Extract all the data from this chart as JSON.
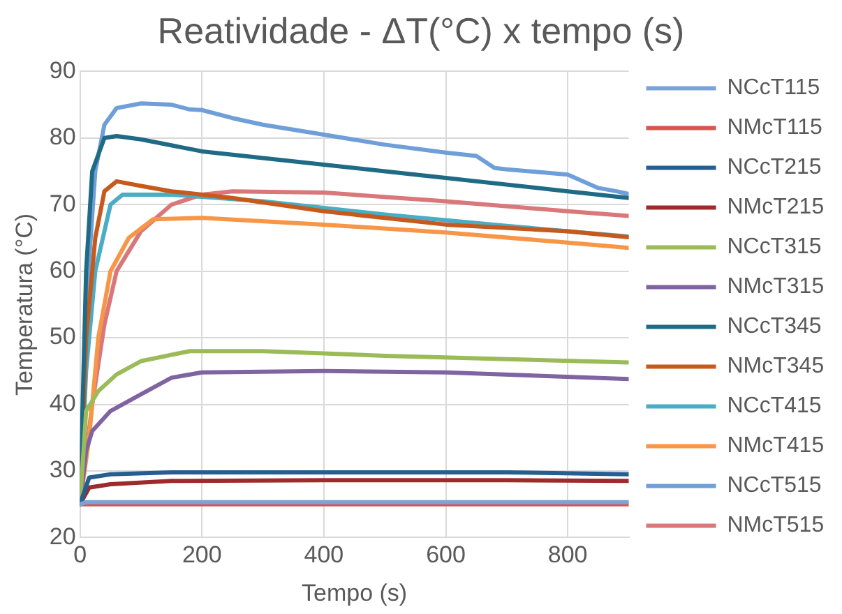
{
  "chart_data": {
    "type": "line",
    "title": "Reatividade - ΔT(°C) x tempo (s)",
    "xlabel": "Tempo (s)",
    "ylabel": "Temperatura (°C)",
    "xlim": [
      0,
      900
    ],
    "xticks": [
      0,
      200,
      400,
      600,
      800
    ],
    "ylim": [
      20,
      90
    ],
    "yticks": [
      20,
      30,
      40,
      50,
      60,
      70,
      80,
      90
    ],
    "grid": true,
    "legend": "right",
    "marker": "none",
    "series": [
      {
        "name": "NCcT115",
        "color": "#7ba3d9",
        "x": [
          0,
          10,
          100,
          900
        ],
        "values": [
          25,
          25.3,
          25.3,
          25.3
        ]
      },
      {
        "name": "NMcT115",
        "color": "#d9534f",
        "x": [
          0,
          100,
          900
        ],
        "values": [
          25,
          25,
          25
        ]
      },
      {
        "name": "NCcT215",
        "color": "#255e91",
        "x": [
          0,
          15,
          50,
          150,
          400,
          700,
          900
        ],
        "values": [
          25,
          29,
          29.5,
          29.8,
          29.8,
          29.8,
          29.5
        ]
      },
      {
        "name": "NMcT215",
        "color": "#9e2a2b",
        "x": [
          0,
          15,
          50,
          150,
          400,
          700,
          900
        ],
        "values": [
          25,
          27.5,
          28,
          28.5,
          28.6,
          28.6,
          28.5
        ]
      },
      {
        "name": "NCcT315",
        "color": "#9bbb59",
        "x": [
          0,
          10,
          30,
          60,
          100,
          180,
          300,
          500,
          700,
          900
        ],
        "values": [
          25,
          39,
          42,
          44.5,
          46.5,
          48,
          48,
          47.3,
          46.8,
          46.3
        ]
      },
      {
        "name": "NMcT315",
        "color": "#8064a2",
        "x": [
          0,
          10,
          20,
          50,
          100,
          150,
          200,
          400,
          600,
          900
        ],
        "values": [
          25,
          33,
          36,
          39,
          41.5,
          44,
          44.8,
          45,
          44.8,
          43.8
        ]
      },
      {
        "name": "NCcT345",
        "color": "#1f6b86",
        "x": [
          0,
          10,
          20,
          40,
          60,
          100,
          200,
          400,
          600,
          800,
          900
        ],
        "values": [
          25,
          60,
          75,
          80,
          80.3,
          79.8,
          78,
          76,
          74,
          72,
          71
        ]
      },
      {
        "name": "NMcT345",
        "color": "#c65a1c",
        "x": [
          0,
          10,
          25,
          40,
          60,
          100,
          150,
          250,
          400,
          600,
          800,
          900
        ],
        "values": [
          25,
          50,
          65,
          72,
          73.5,
          72.8,
          72,
          71,
          69,
          67,
          66,
          65.1
        ]
      },
      {
        "name": "NCcT415",
        "color": "#4bacc6",
        "x": [
          0,
          10,
          25,
          50,
          70,
          150,
          300,
          500,
          700,
          900
        ],
        "values": [
          25,
          45,
          60,
          70,
          71.5,
          71.5,
          70.5,
          68.5,
          66.8,
          65.2
        ]
      },
      {
        "name": "NMcT415",
        "color": "#f79646",
        "x": [
          0,
          15,
          30,
          50,
          80,
          120,
          200,
          400,
          600,
          800,
          900
        ],
        "values": [
          25,
          35,
          50,
          60,
          65,
          67.8,
          68,
          67,
          65.8,
          64.3,
          63.5
        ]
      },
      {
        "name": "NCcT515",
        "color": "#6f9fd8",
        "x": [
          0,
          10,
          25,
          40,
          60,
          100,
          150,
          180,
          200,
          250,
          300,
          400,
          500,
          600,
          650,
          680,
          700,
          800,
          850,
          880,
          900
        ],
        "values": [
          25,
          55,
          75,
          82,
          84.5,
          85.2,
          85,
          84.3,
          84.2,
          83,
          82,
          80.5,
          79,
          77.8,
          77.3,
          75.5,
          75.3,
          74.5,
          72.5,
          72,
          71.6
        ]
      },
      {
        "name": "NMcT515",
        "color": "#d9777a",
        "x": [
          0,
          20,
          40,
          60,
          100,
          150,
          200,
          250,
          400,
          600,
          800,
          900
        ],
        "values": [
          25,
          40,
          52,
          60,
          66,
          70,
          71.5,
          72,
          71.8,
          70.5,
          69,
          68.3
        ]
      }
    ]
  }
}
